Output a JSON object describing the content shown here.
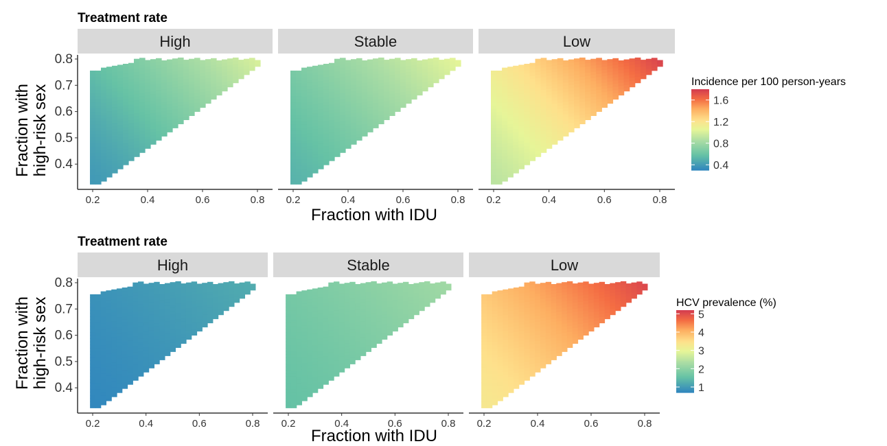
{
  "chart_data": [
    {
      "type": "heatmap",
      "title": "Treatment rate",
      "facets": [
        "High",
        "Stable",
        "Low"
      ],
      "xlabel": "Fraction with IDU",
      "ylabel": "Fraction with\nhigh-risk sex",
      "xlim": [
        0.2,
        0.8
      ],
      "ylim": [
        0.33,
        0.8
      ],
      "xticks": [
        "0.2",
        "0.4",
        "0.6",
        "0.8"
      ],
      "yticks": [
        "0.4",
        "0.5",
        "0.6",
        "0.7",
        "0.8"
      ],
      "region": "triangle: x from 0.2 to 0.8; y from ~0.33 + 0.78*(x-0.2) up to 0.8 (capped lower near x=0.2)",
      "legend": {
        "title": "Incidence per 100 person-years",
        "ticks": [
          "0.4",
          "0.8",
          "1.2",
          "1.6"
        ],
        "range": [
          0.3,
          1.8
        ],
        "palette": "Spectral (blue low, red high)",
        "placement": "right"
      },
      "facet_values": [
        {
          "facet": "High",
          "min_value": 0.38,
          "max_value": 1.0
        },
        {
          "facet": "Stable",
          "min_value": 0.5,
          "max_value": 1.05
        },
        {
          "facet": "Low",
          "min_value": 0.9,
          "max_value": 1.78
        }
      ]
    },
    {
      "type": "heatmap",
      "title": "Treatment rate",
      "facets": [
        "High",
        "Stable",
        "Low"
      ],
      "xlabel": "Fraction with IDU",
      "ylabel": "Fraction with\nhigh-risk sex",
      "xlim": [
        0.2,
        0.8
      ],
      "ylim": [
        0.33,
        0.8
      ],
      "xticks": [
        "0.2",
        "0.4",
        "0.6",
        "0.8"
      ],
      "yticks": [
        "0.4",
        "0.5",
        "0.6",
        "0.7",
        "0.8"
      ],
      "region": "triangle: x from 0.2 to 0.8; y from ~0.33 + 0.78*(x-0.2) up to 0.8 (capped lower near x=0.2)",
      "legend": {
        "title": "HCV prevalence (%)",
        "ticks": [
          "1",
          "2",
          "3",
          "4",
          "5"
        ],
        "range": [
          0.7,
          5.2
        ],
        "palette": "Spectral (blue low, red high)",
        "placement": "right"
      },
      "facet_values": [
        {
          "facet": "High",
          "min_value": 0.7,
          "max_value": 1.2
        },
        {
          "facet": "Stable",
          "min_value": 1.5,
          "max_value": 2.2
        },
        {
          "facet": "Low",
          "min_value": 3.3,
          "max_value": 5.1
        }
      ]
    }
  ]
}
